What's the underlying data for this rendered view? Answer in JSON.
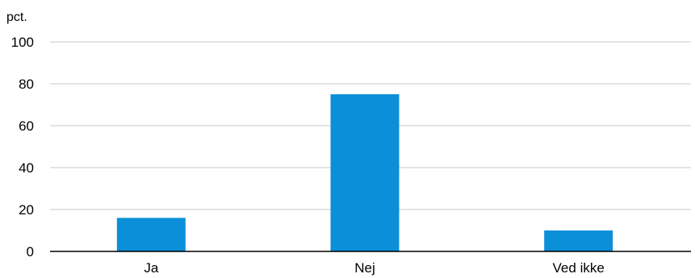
{
  "chart_data": {
    "type": "bar",
    "title": "",
    "ylabel": "pct.",
    "xlabel": "",
    "categories": [
      "Ja",
      "Nej",
      "Ved ikke"
    ],
    "values": [
      16,
      75,
      10
    ],
    "ylim": [
      0,
      100
    ],
    "yticks": [
      0,
      20,
      40,
      60,
      80,
      100
    ],
    "grid": true,
    "bar_color": "#0a8fd8"
  }
}
